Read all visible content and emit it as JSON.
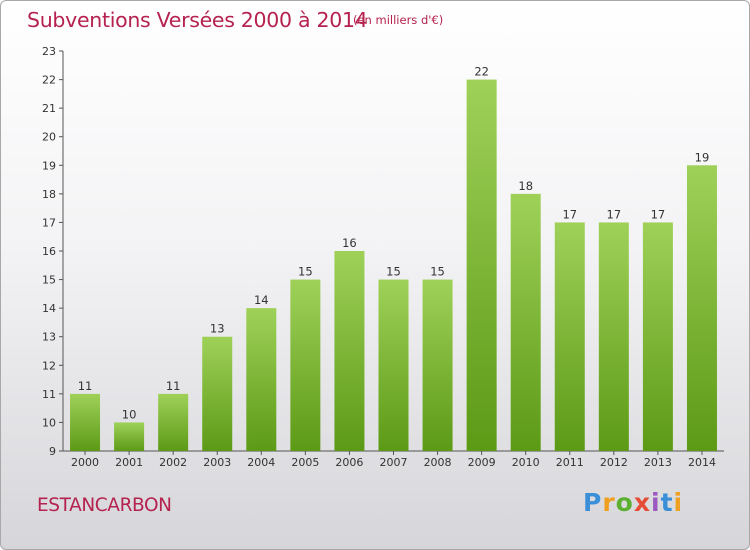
{
  "header": {
    "title": "Subventions Versées 2000 à 2014",
    "unit_note": "(en milliers d'€)"
  },
  "footer": {
    "location": "ESTANCARBON",
    "brand": "Proxiti"
  },
  "colors": {
    "title": "#b5224f",
    "bar_top": "#9fd159",
    "bar_bottom": "#5c9a16",
    "axis": "#555555",
    "grid": "#d0d0d0"
  },
  "chart_data": {
    "type": "bar",
    "title": "Subventions Versées 2000 à 2014",
    "subtitle": "(en milliers d'€)",
    "xlabel": "",
    "ylabel": "",
    "categories": [
      "2000",
      "2001",
      "2002",
      "2003",
      "2004",
      "2005",
      "2006",
      "2007",
      "2008",
      "2009",
      "2010",
      "2011",
      "2012",
      "2013",
      "2014"
    ],
    "values": [
      11,
      10,
      11,
      13,
      14,
      15,
      16,
      15,
      15,
      22,
      18,
      17,
      17,
      17,
      19
    ],
    "ylim": [
      9,
      23
    ],
    "yticks": [
      9,
      10,
      11,
      12,
      13,
      14,
      15,
      16,
      17,
      18,
      19,
      20,
      21,
      22,
      23
    ],
    "grid": false,
    "data_labels": true
  }
}
